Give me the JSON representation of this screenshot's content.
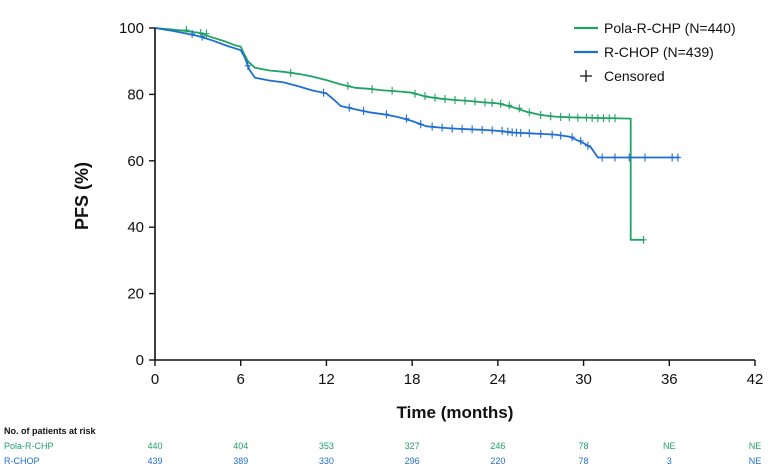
{
  "chart_data": {
    "type": "line",
    "subtype": "kaplan-meier",
    "title": "",
    "xlabel": "Time (months)",
    "ylabel": "PFS (%)",
    "xlim": [
      0,
      42
    ],
    "ylim": [
      0,
      100
    ],
    "xticks": [
      0,
      6,
      12,
      18,
      24,
      30,
      36,
      42
    ],
    "yticks": [
      0,
      20,
      40,
      60,
      80,
      100
    ],
    "grid": false,
    "legend_position": "top-right",
    "legend_censored_label": "Censored",
    "series": [
      {
        "name": "Pola-R-CHP (N=440)",
        "color": "#21a366",
        "points": [
          [
            0,
            100
          ],
          [
            1,
            99.6
          ],
          [
            2,
            99.2
          ],
          [
            3,
            98.6
          ],
          [
            4,
            97.2
          ],
          [
            5,
            95.8
          ],
          [
            5.6,
            94.8
          ],
          [
            6.0,
            94.4
          ],
          [
            6.2,
            92.5
          ],
          [
            6.5,
            90
          ],
          [
            7,
            88
          ],
          [
            8,
            87.2
          ],
          [
            9,
            86.8
          ],
          [
            10,
            86.2
          ],
          [
            11,
            85.4
          ],
          [
            12,
            84.3
          ],
          [
            13,
            83
          ],
          [
            14,
            82
          ],
          [
            15,
            81.7
          ],
          [
            16,
            81.2
          ],
          [
            17,
            80.9
          ],
          [
            18,
            80.5
          ],
          [
            19,
            79.3
          ],
          [
            20,
            78.7
          ],
          [
            21,
            78.3
          ],
          [
            22,
            78
          ],
          [
            23,
            77.6
          ],
          [
            24,
            77.3
          ],
          [
            25,
            76.2
          ],
          [
            26,
            74.8
          ],
          [
            27,
            73.8
          ],
          [
            28,
            73.3
          ],
          [
            29,
            73.1
          ],
          [
            30,
            73
          ],
          [
            33.3,
            72.7
          ],
          [
            33.3,
            36.2
          ],
          [
            34.2,
            36.2
          ]
        ],
        "censored": [
          [
            2.2,
            99.4
          ],
          [
            3.2,
            98.5
          ],
          [
            3.6,
            98.3
          ],
          [
            9.5,
            86.5
          ],
          [
            13.5,
            82.6
          ],
          [
            15.2,
            81.6
          ],
          [
            16.6,
            81.1
          ],
          [
            18.2,
            80.2
          ],
          [
            18.9,
            79.5
          ],
          [
            19.6,
            79
          ],
          [
            20.3,
            78.6
          ],
          [
            21,
            78.3
          ],
          [
            21.7,
            78.1
          ],
          [
            22.4,
            77.9
          ],
          [
            23.1,
            77.6
          ],
          [
            23.6,
            77.5
          ],
          [
            24.2,
            77.2
          ],
          [
            24.8,
            76.7
          ],
          [
            25.5,
            75.8
          ],
          [
            26.2,
            74.6
          ],
          [
            27,
            73.8
          ],
          [
            27.7,
            73.4
          ],
          [
            28.4,
            73.2
          ],
          [
            29,
            73.1
          ],
          [
            29.6,
            73
          ],
          [
            30.2,
            73
          ],
          [
            30.6,
            72.9
          ],
          [
            31,
            72.8
          ],
          [
            31.4,
            72.8
          ],
          [
            31.8,
            72.8
          ],
          [
            32.2,
            72.8
          ],
          [
            34.2,
            36.2
          ]
        ]
      },
      {
        "name": "R-CHOP (N=439)",
        "color": "#1f6fd1",
        "points": [
          [
            0,
            100
          ],
          [
            1,
            99.3
          ],
          [
            2,
            98.5
          ],
          [
            3,
            97.6
          ],
          [
            4,
            96.3
          ],
          [
            5,
            94.7
          ],
          [
            6,
            93.3
          ],
          [
            6.3,
            91
          ],
          [
            6.6,
            87.5
          ],
          [
            7,
            85
          ],
          [
            8,
            84.2
          ],
          [
            9,
            83.6
          ],
          [
            10,
            82.5
          ],
          [
            11,
            81.2
          ],
          [
            12,
            80.3
          ],
          [
            12.5,
            78.5
          ],
          [
            13,
            76.5
          ],
          [
            14,
            75.5
          ],
          [
            15,
            74.6
          ],
          [
            16,
            74
          ],
          [
            17,
            73.2
          ],
          [
            18,
            72
          ],
          [
            19,
            70.4
          ],
          [
            20,
            70
          ],
          [
            21,
            69.7
          ],
          [
            22,
            69.5
          ],
          [
            23,
            69.3
          ],
          [
            24,
            69
          ],
          [
            25,
            68.5
          ],
          [
            26,
            68.3
          ],
          [
            27,
            68.1
          ],
          [
            28,
            67.9
          ],
          [
            29,
            67.3
          ],
          [
            30,
            65.3
          ],
          [
            30.5,
            64.1
          ],
          [
            31,
            61
          ],
          [
            32,
            61
          ],
          [
            36.7,
            61
          ]
        ],
        "censored": [
          [
            2.6,
            98.2
          ],
          [
            3.3,
            97.4
          ],
          [
            6.5,
            88.6
          ],
          [
            11.8,
            80.5
          ],
          [
            13.6,
            76
          ],
          [
            14.6,
            75
          ],
          [
            16.2,
            74
          ],
          [
            17.6,
            72.7
          ],
          [
            18.6,
            71
          ],
          [
            19.4,
            70.3
          ],
          [
            20.1,
            70
          ],
          [
            20.8,
            69.7
          ],
          [
            21.5,
            69.6
          ],
          [
            22.2,
            69.5
          ],
          [
            22.9,
            69.3
          ],
          [
            23.6,
            69.2
          ],
          [
            24.3,
            69
          ],
          [
            24.7,
            68.8
          ],
          [
            25,
            68.6
          ],
          [
            25.3,
            68.5
          ],
          [
            25.6,
            68.4
          ],
          [
            26.2,
            68.3
          ],
          [
            27,
            68.1
          ],
          [
            27.8,
            67.9
          ],
          [
            28.4,
            67.6
          ],
          [
            29.2,
            67.1
          ],
          [
            29.8,
            66
          ],
          [
            30.3,
            64.5
          ],
          [
            31.3,
            61
          ],
          [
            32.2,
            61
          ],
          [
            33.2,
            61
          ],
          [
            34.3,
            61
          ],
          [
            36.2,
            61
          ],
          [
            36.6,
            61
          ]
        ]
      }
    ],
    "risk_table": {
      "title": "No. of patients at risk",
      "timepoints": [
        0,
        6,
        12,
        18,
        24,
        30,
        36,
        42
      ],
      "rows": [
        {
          "label": "Pola-R-CHP",
          "color": "#21a366",
          "values": [
            "440",
            "404",
            "353",
            "327",
            "246",
            "78",
            "NE",
            "NE"
          ]
        },
        {
          "label": "R-CHOP",
          "color": "#1f6fd1",
          "values": [
            "439",
            "389",
            "330",
            "296",
            "220",
            "78",
            "3",
            "NE"
          ]
        }
      ]
    }
  }
}
